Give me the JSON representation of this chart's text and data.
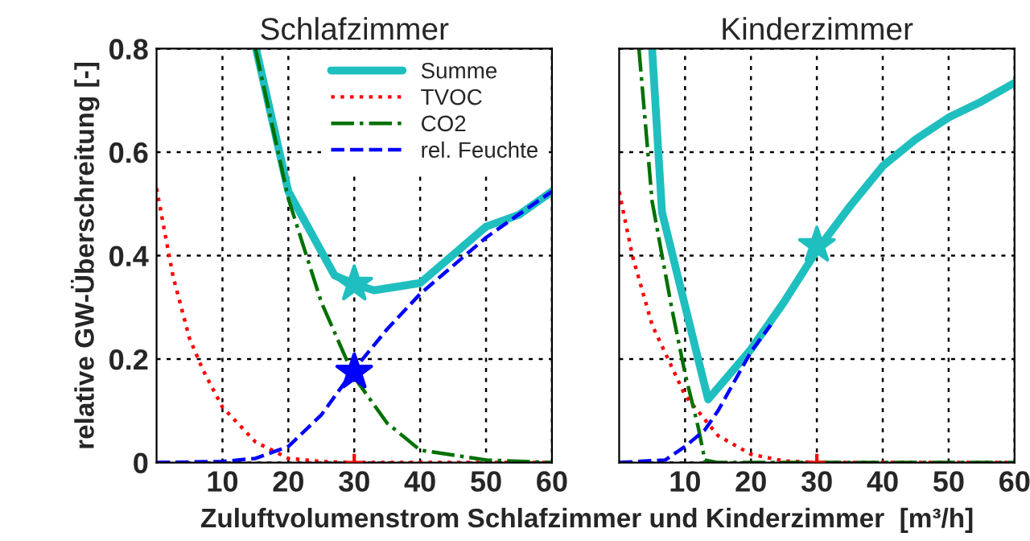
{
  "chart_data": [
    {
      "type": "line",
      "title": "Schlafzimmer",
      "ylabel": "relative GW-Überschreitung [-]",
      "xlabel": "Zuluftvolumenstrom Schlafzimmer und Kinderzimmer  [m³/h]",
      "xlim": [
        0,
        60
      ],
      "ylim": [
        0,
        0.8
      ],
      "xticks": [
        10,
        20,
        30,
        40,
        50,
        60
      ],
      "yticks": [
        0,
        0.2,
        0.4,
        0.6,
        0.8
      ],
      "grid": true,
      "legend": "top right",
      "series": [
        {
          "name": "Summe",
          "color": "#1fbfbf",
          "line_style": "solid",
          "x": [
            15.1,
            20,
            27,
            30,
            33,
            40,
            50,
            55,
            60
          ],
          "values": [
            0.8,
            0.524,
            0.362,
            0.345,
            0.333,
            0.347,
            0.456,
            0.479,
            0.524
          ]
        },
        {
          "name": "TVOC",
          "color": "#ff0000",
          "line_style": "dotted",
          "x": [
            0,
            2.5,
            5,
            7,
            10,
            15,
            20,
            25,
            30,
            40,
            50,
            60
          ],
          "values": [
            0.53,
            0.36,
            0.24,
            0.18,
            0.107,
            0.04,
            0.008,
            0.002,
            0,
            0,
            0,
            0
          ]
        },
        {
          "name": "CO2",
          "color": "#007000",
          "line_style": "dashdot",
          "x": [
            15,
            20,
            25,
            30,
            35,
            40,
            50,
            60
          ],
          "values": [
            0.8,
            0.51,
            0.31,
            0.165,
            0.076,
            0.024,
            0.005,
            0
          ]
        },
        {
          "name": "rel. Feuchte",
          "color": "#0000ff",
          "line_style": "dashed",
          "x": [
            0,
            10,
            15,
            20,
            25,
            30,
            35,
            40,
            50,
            55,
            60
          ],
          "values": [
            0,
            0.002,
            0.008,
            0.031,
            0.092,
            0.18,
            0.258,
            0.326,
            0.435,
            0.48,
            0.524
          ]
        },
        {
          "type": "scatter",
          "marker": "star",
          "color": "#1fbfbf",
          "x": [
            30
          ],
          "values": [
            0.345
          ]
        },
        {
          "type": "scatter",
          "marker": "star",
          "color": "#0000ff",
          "x": [
            30
          ],
          "values": [
            0.175
          ]
        },
        {
          "type": "scatter",
          "marker": "cross",
          "color": "#ff0000",
          "x": [
            30
          ],
          "values": [
            0
          ]
        }
      ]
    },
    {
      "type": "line",
      "title": "Kinderzimmer",
      "xlim": [
        0,
        60
      ],
      "ylim": [
        0,
        0.8
      ],
      "xticks": [
        10,
        20,
        30,
        40,
        50,
        60
      ],
      "yticks": [
        0,
        0.2,
        0.4,
        0.6,
        0.8
      ],
      "tick_labels": "x",
      "grid": true,
      "series": [
        {
          "color": "#1fbfbf",
          "line_style": "solid",
          "x": [
            5,
            6.5,
            13.5,
            20,
            25,
            30,
            35,
            40,
            45,
            50,
            55,
            60
          ],
          "values": [
            0.8,
            0.484,
            0.122,
            0.219,
            0.31,
            0.41,
            0.495,
            0.573,
            0.625,
            0.667,
            0.698,
            0.734
          ]
        },
        {
          "color": "#ff0000",
          "line_style": "dotted",
          "x": [
            0,
            2,
            5,
            10,
            15,
            20,
            25,
            30,
            40,
            50,
            60
          ],
          "values": [
            0.524,
            0.4,
            0.266,
            0.13,
            0.052,
            0.016,
            0.003,
            0,
            0,
            0,
            0
          ]
        },
        {
          "color": "#007000",
          "line_style": "dashdot",
          "x": [
            3,
            5,
            8,
            10,
            12,
            13,
            15,
            30,
            60
          ],
          "values": [
            0.8,
            0.505,
            0.297,
            0.172,
            0.068,
            0.005,
            0,
            0,
            0
          ]
        },
        {
          "color": "#0000ff",
          "line_style": "dashed",
          "x": [
            0,
            7,
            10,
            13,
            15,
            20,
            23
          ],
          "values": [
            0,
            0.005,
            0.031,
            0.063,
            0.1,
            0.214,
            0.266
          ]
        },
        {
          "type": "scatter",
          "marker": "star",
          "color": "#1fbfbf",
          "x": [
            30
          ],
          "values": [
            0.42
          ]
        },
        {
          "type": "scatter",
          "marker": "cross",
          "color": "#ff0000",
          "x": [
            30
          ],
          "values": [
            0
          ]
        }
      ]
    }
  ]
}
